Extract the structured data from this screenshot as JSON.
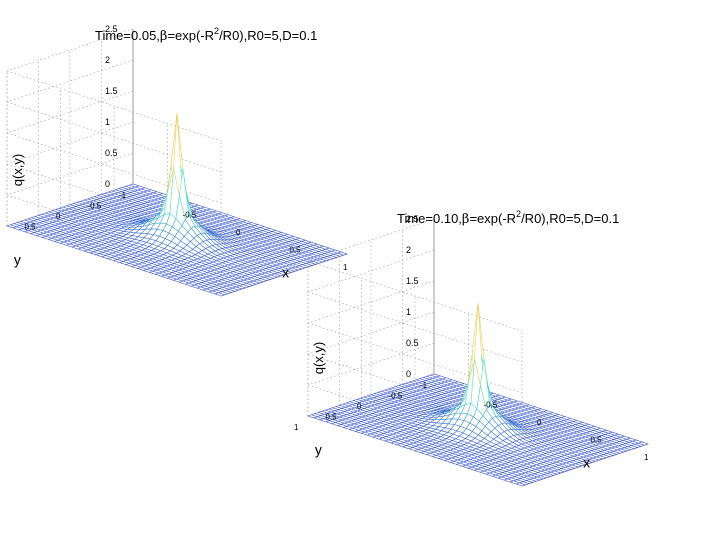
{
  "chart_data": [
    {
      "type": "surface",
      "title": "Time=0.05,β=exp(-R²/R0),R0=5,D=0.1",
      "title_parts": [
        "Time=0.05,",
        "β",
        "=exp(-R",
        "2",
        "/R0),R0=5,D=0.1"
      ],
      "xlabel": "x",
      "ylabel": "y",
      "zlabel": "q(x,y)",
      "xlim": [
        -1,
        1
      ],
      "ylim": [
        -1,
        1
      ],
      "zlim": [
        0,
        2.5
      ],
      "x_ticks": [
        "-0.5",
        "0",
        "0.5",
        "1"
      ],
      "y_ticks": [
        "-1",
        "-0.5",
        "0",
        "0.5",
        "1"
      ],
      "z_ticks": [
        "0",
        "0.5",
        "1",
        "1.5",
        "2",
        "2.5"
      ],
      "peak": {
        "x": 0,
        "y": 0,
        "z": 2.0
      },
      "grid": true
    },
    {
      "type": "surface",
      "title": "Time=0.10,β=exp(-R²/R0),R0=5,D=0.1",
      "title_parts": [
        "Time=0.10,",
        "β",
        "=exp(-R",
        "2",
        "/R0),R0=5,D=0.1"
      ],
      "xlabel": "x",
      "ylabel": "y",
      "zlabel": "q(x,y)",
      "xlim": [
        -1,
        1
      ],
      "ylim": [
        -1,
        1
      ],
      "zlim": [
        0,
        2.5
      ],
      "x_ticks": [
        "-0.5",
        "0",
        "0.5",
        "1"
      ],
      "y_ticks": [
        "-1",
        "-0.5",
        "0",
        "0.5",
        "1"
      ],
      "z_ticks": [
        "0",
        "0.5",
        "1",
        "1.5",
        "2",
        "2.5"
      ],
      "peak": {
        "x": 0,
        "y": 0,
        "z": 2.0
      },
      "grid": true
    }
  ]
}
